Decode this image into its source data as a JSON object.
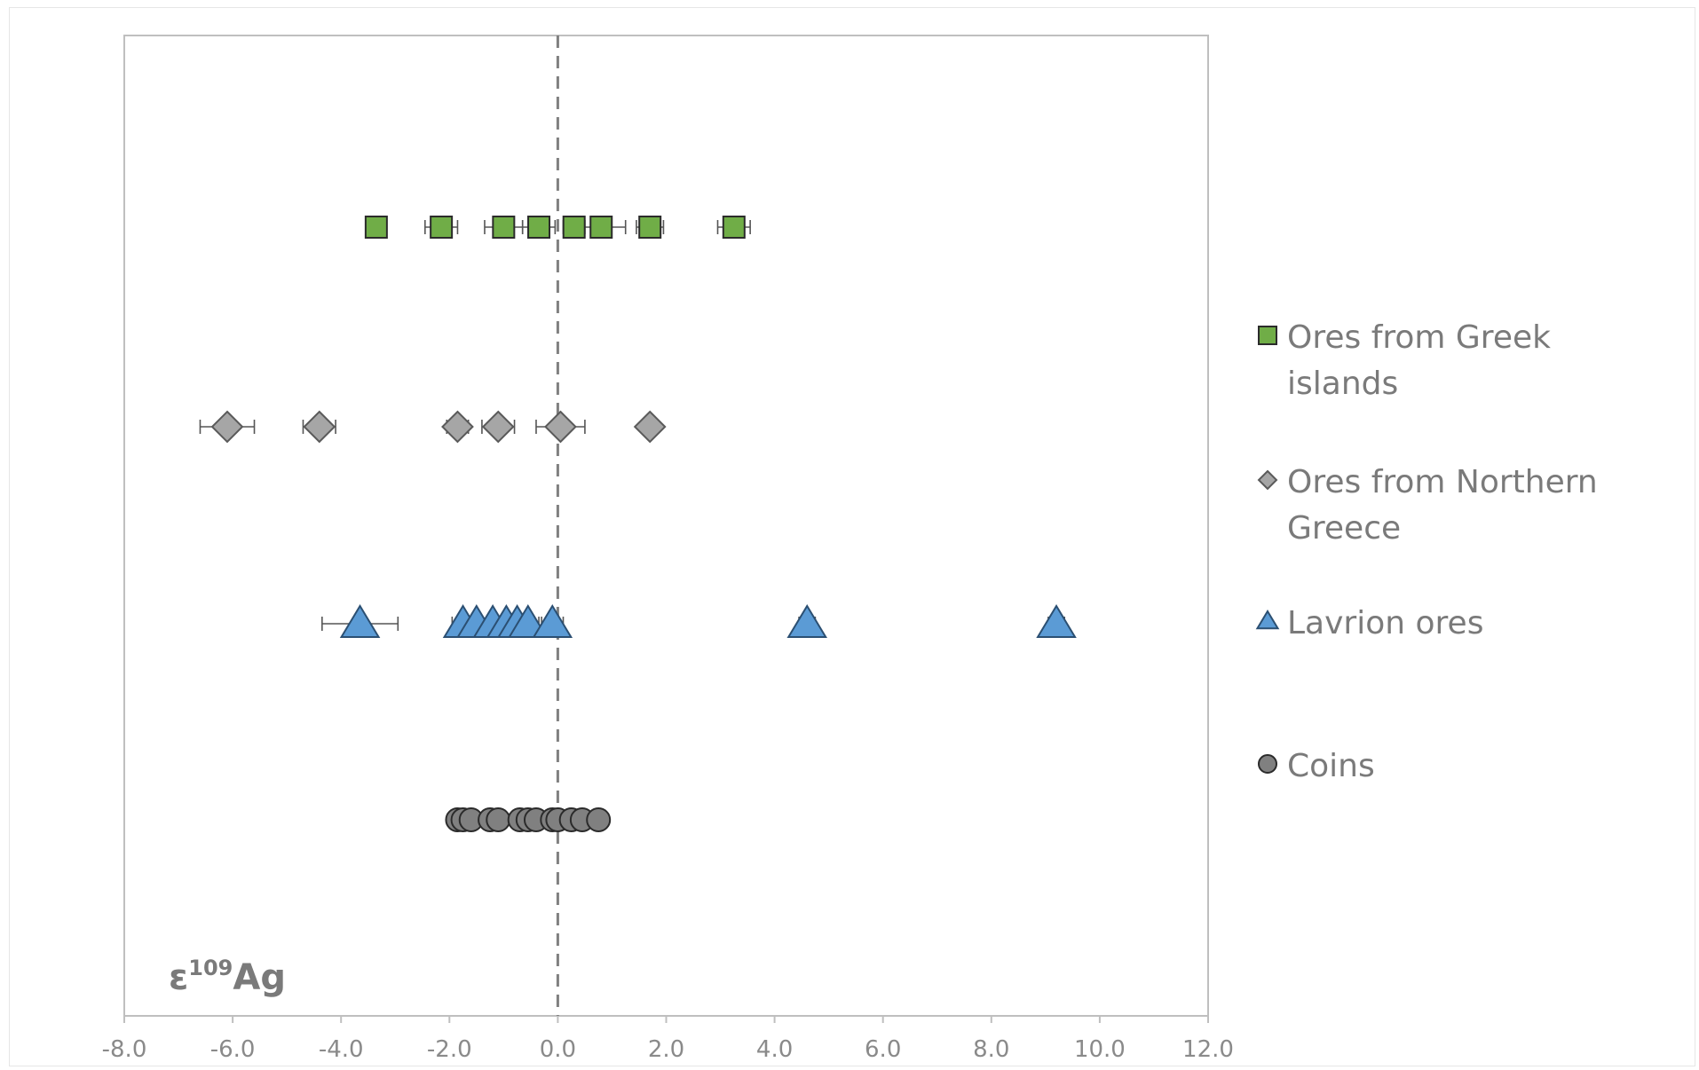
{
  "chart_data": {
    "type": "scatter",
    "title": "",
    "axis_label": {
      "symbol": "ε",
      "superscript": "109",
      "element": "Ag"
    },
    "xlim": [
      -8.0,
      12.0
    ],
    "x_ticks": [
      -8.0,
      -6.0,
      -4.0,
      -2.0,
      0.0,
      2.0,
      4.0,
      6.0,
      8.0,
      10.0,
      12.0
    ],
    "x_tick_labels": [
      "-8.0",
      "-6.0",
      "-4.0",
      "-2.0",
      "0.0",
      "2.0",
      "4.0",
      "6.0",
      "8.0",
      "10.0",
      "12.0"
    ],
    "reference_line": {
      "x": 0.0,
      "style": "dashed"
    },
    "grid": false,
    "legend_position": "right",
    "series": [
      {
        "name": "Ores from Greek islands",
        "marker": "square",
        "fill": "#70ad47",
        "level": 4,
        "points": [
          {
            "x": -3.35,
            "err": 0.15
          },
          {
            "x": -2.15,
            "err": 0.3
          },
          {
            "x": -1.0,
            "err": 0.35
          },
          {
            "x": -0.35,
            "err": 0.3
          },
          {
            "x": 0.3,
            "err": 0.2
          },
          {
            "x": 0.8,
            "err": 0.45
          },
          {
            "x": 1.7,
            "err": 0.25
          },
          {
            "x": 3.25,
            "err": 0.3
          }
        ]
      },
      {
        "name": "Ores from Northern Greece",
        "marker": "diamond",
        "fill": "#a6a6a6",
        "level": 3,
        "points": [
          {
            "x": -6.1,
            "err": 0.5
          },
          {
            "x": -4.4,
            "err": 0.3
          },
          {
            "x": -1.85,
            "err": 0.2
          },
          {
            "x": -1.1,
            "err": 0.3
          },
          {
            "x": 0.05,
            "err": 0.45
          },
          {
            "x": 1.7,
            "err": 0.1
          }
        ]
      },
      {
        "name": "Lavrion ores",
        "marker": "triangle",
        "fill": "#5b9bd5",
        "level": 2,
        "points": [
          {
            "x": -3.65,
            "err": 0.7
          },
          {
            "x": -1.75,
            "err": 0.2
          },
          {
            "x": -1.5,
            "err": 0.2
          },
          {
            "x": -1.2,
            "err": 0.2
          },
          {
            "x": -0.95,
            "err": 0.2
          },
          {
            "x": -0.75,
            "err": 0.2
          },
          {
            "x": -0.55,
            "err": 0.2
          },
          {
            "x": -0.1,
            "err": 0.2
          },
          {
            "x": 4.6,
            "err": 0.15
          },
          {
            "x": 9.2,
            "err": 0.15
          }
        ]
      },
      {
        "name": "Coins",
        "marker": "circle",
        "fill": "#808080",
        "level": 1,
        "points": [
          {
            "x": -1.85,
            "err": 0.15
          },
          {
            "x": -1.75,
            "err": 0.15
          },
          {
            "x": -1.6,
            "err": 0.15
          },
          {
            "x": -1.25,
            "err": 0.15
          },
          {
            "x": -1.1,
            "err": 0.15
          },
          {
            "x": -0.7,
            "err": 0.15
          },
          {
            "x": -0.55,
            "err": 0.15
          },
          {
            "x": -0.4,
            "err": 0.15
          },
          {
            "x": -0.1,
            "err": 0.15
          },
          {
            "x": 0.0,
            "err": 0.15
          },
          {
            "x": 0.25,
            "err": 0.15
          },
          {
            "x": 0.45,
            "err": 0.15
          },
          {
            "x": 0.75,
            "err": 0.15
          }
        ]
      }
    ]
  }
}
